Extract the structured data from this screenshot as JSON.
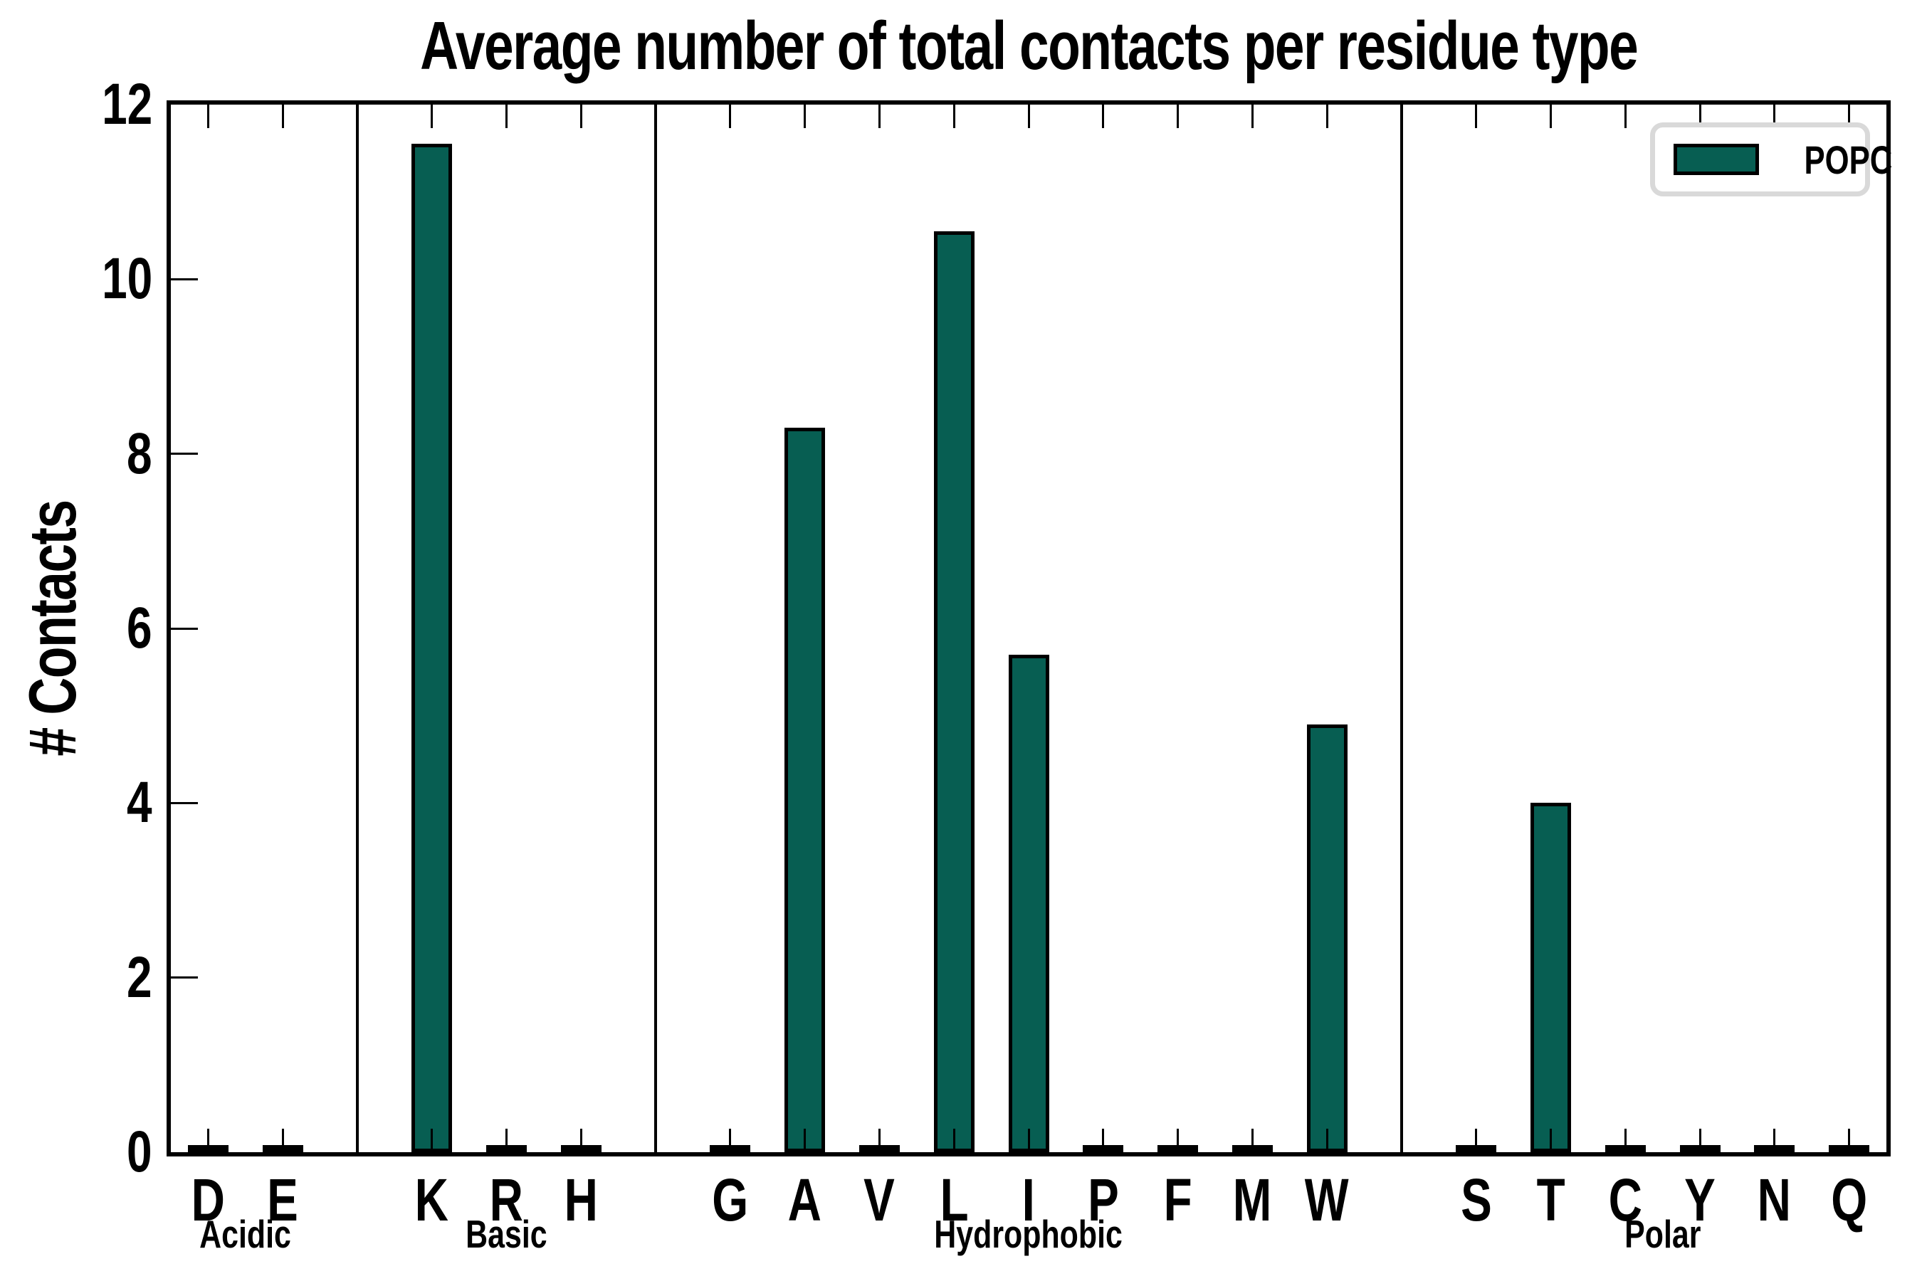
{
  "title": "Average number of total contacts per residue type",
  "ylabel": "# Contacts",
  "legend": {
    "label": "POPC",
    "swatch_color": "#075e52",
    "border_color": "#d9d9d9"
  },
  "colors": {
    "bar_fill": "#075e52",
    "bar_edge": "#000000",
    "axis": "#000000",
    "text": "#000000"
  },
  "chart_data": {
    "type": "bar",
    "title": "Average number of total contacts per residue type",
    "xlabel": "",
    "ylabel": "# Contacts",
    "ylim": [
      0,
      12
    ],
    "yticks": [
      0,
      2,
      4,
      6,
      8,
      10,
      12
    ],
    "grid": false,
    "tick_direction": "in",
    "legend_entries": [
      "POPC"
    ],
    "legend_position": "upper right",
    "group_separators": true,
    "groups": [
      {
        "label": "Acidic",
        "categories": [
          "D",
          "E"
        ],
        "values": [
          0.04,
          0.04
        ]
      },
      {
        "label": "Basic",
        "categories": [
          "K",
          "R",
          "H"
        ],
        "values": [
          11.55,
          0.04,
          0.04
        ]
      },
      {
        "label": "Hydrophobic",
        "categories": [
          "G",
          "A",
          "V",
          "L",
          "I",
          "P",
          "F",
          "M",
          "W"
        ],
        "values": [
          0.04,
          8.3,
          0.04,
          10.55,
          5.7,
          0.04,
          0.04,
          0.04,
          4.9
        ]
      },
      {
        "label": "Polar",
        "categories": [
          "S",
          "T",
          "C",
          "Y",
          "N",
          "Q"
        ],
        "values": [
          0.04,
          4.0,
          0.04,
          0.04,
          0.04,
          0.04
        ]
      }
    ]
  }
}
